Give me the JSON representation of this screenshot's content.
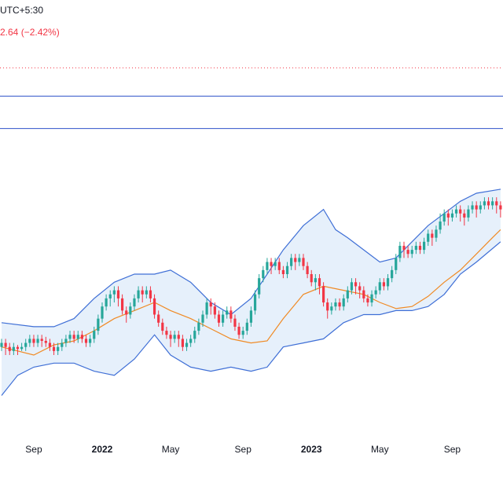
{
  "header": {
    "timezone_fragment": "UTC+5:30",
    "change_fragment": "2.64 (−2.42%)"
  },
  "colors": {
    "up": "#26a69a",
    "down": "#f23645",
    "band": "#3f6fd6",
    "band_fill": "#e6f0fb",
    "basis": "#f08a24",
    "hline": "#2f52c9",
    "dotted": "#f23645"
  },
  "chart_data": {
    "type": "candlestick",
    "x_ticks": [
      {
        "label": "Sep",
        "week": 8,
        "bold": false
      },
      {
        "label": "2022",
        "week": 25,
        "bold": true
      },
      {
        "label": "May",
        "week": 42,
        "bold": false
      },
      {
        "label": "Sep",
        "week": 60,
        "bold": false
      },
      {
        "label": "2023",
        "week": 77,
        "bold": true
      },
      {
        "label": "May",
        "week": 94,
        "bold": false
      },
      {
        "label": "Sep",
        "week": 112,
        "bold": false
      }
    ],
    "ylim": [
      0,
      100
    ],
    "horizontal_lines": [
      {
        "value": 91,
        "style": "dotted"
      },
      {
        "value": 84,
        "style": "solid"
      },
      {
        "value": 76,
        "style": "solid"
      }
    ],
    "bollinger": {
      "basis": [
        [
          0,
          22
        ],
        [
          8,
          20
        ],
        [
          13,
          22.5
        ],
        [
          18,
          23.5
        ],
        [
          23,
          26
        ],
        [
          28,
          29
        ],
        [
          33,
          31
        ],
        [
          38,
          33
        ],
        [
          42,
          31
        ],
        [
          47,
          29
        ],
        [
          52,
          26.5
        ],
        [
          57,
          24
        ],
        [
          62,
          23
        ],
        [
          66,
          23.5
        ],
        [
          70,
          29
        ],
        [
          75,
          35
        ],
        [
          80,
          37
        ],
        [
          85,
          36
        ],
        [
          90,
          35
        ],
        [
          94,
          33
        ],
        [
          98,
          31.5
        ],
        [
          102,
          32
        ],
        [
          106,
          34.5
        ],
        [
          110,
          38
        ],
        [
          114,
          41
        ],
        [
          118,
          45
        ],
        [
          122,
          49
        ],
        [
          124,
          51
        ]
      ],
      "upper": [
        [
          0,
          28
        ],
        [
          8,
          27
        ],
        [
          13,
          27
        ],
        [
          18,
          29
        ],
        [
          23,
          34
        ],
        [
          28,
          38
        ],
        [
          33,
          40
        ],
        [
          38,
          40
        ],
        [
          42,
          41
        ],
        [
          47,
          38
        ],
        [
          52,
          33
        ],
        [
          57,
          30
        ],
        [
          62,
          34
        ],
        [
          66,
          40
        ],
        [
          70,
          46
        ],
        [
          75,
          52
        ],
        [
          80,
          56
        ],
        [
          83,
          51
        ],
        [
          86,
          49
        ],
        [
          90,
          46
        ],
        [
          94,
          43
        ],
        [
          98,
          44
        ],
        [
          102,
          48
        ],
        [
          106,
          52
        ],
        [
          110,
          55
        ],
        [
          114,
          58
        ],
        [
          118,
          60
        ],
        [
          124,
          61
        ]
      ],
      "lower": [
        [
          0,
          10
        ],
        [
          4,
          15
        ],
        [
          8,
          17
        ],
        [
          13,
          18
        ],
        [
          18,
          18
        ],
        [
          23,
          16
        ],
        [
          28,
          15
        ],
        [
          33,
          19
        ],
        [
          38,
          25
        ],
        [
          42,
          20
        ],
        [
          47,
          17
        ],
        [
          52,
          16
        ],
        [
          57,
          17
        ],
        [
          62,
          16
        ],
        [
          66,
          17
        ],
        [
          70,
          22
        ],
        [
          75,
          23
        ],
        [
          80,
          24
        ],
        [
          85,
          28
        ],
        [
          90,
          30
        ],
        [
          94,
          30
        ],
        [
          98,
          31
        ],
        [
          102,
          31
        ],
        [
          106,
          32
        ],
        [
          110,
          35
        ],
        [
          114,
          40
        ],
        [
          118,
          43
        ],
        [
          124,
          48
        ]
      ]
    },
    "weekly_candles": [
      [
        22,
        23,
        24,
        21
      ],
      [
        23,
        22,
        24,
        20
      ],
      [
        22,
        21,
        23,
        20
      ],
      [
        21,
        22,
        23,
        20
      ],
      [
        22,
        21.5,
        22.5,
        20
      ],
      [
        21.5,
        22,
        23,
        21
      ],
      [
        22,
        23,
        24,
        21
      ],
      [
        23,
        24,
        25,
        22
      ],
      [
        24,
        23,
        25,
        22
      ],
      [
        23,
        24,
        25,
        22
      ],
      [
        24,
        23.5,
        25,
        22
      ],
      [
        23.5,
        23,
        24.5,
        22
      ],
      [
        23,
        22,
        24,
        21
      ],
      [
        22,
        21,
        23,
        20
      ],
      [
        21,
        22,
        23,
        20
      ],
      [
        22,
        23,
        24,
        21
      ],
      [
        23,
        24,
        25,
        22
      ],
      [
        24,
        25,
        26,
        23
      ],
      [
        25,
        24,
        26,
        23
      ],
      [
        24,
        25,
        26,
        23
      ],
      [
        25,
        24,
        26,
        23
      ],
      [
        24,
        23,
        25,
        22
      ],
      [
        23,
        24,
        25,
        22
      ],
      [
        24,
        26,
        27,
        23
      ],
      [
        26,
        29,
        30,
        25
      ],
      [
        29,
        32,
        33,
        28
      ],
      [
        32,
        34,
        35,
        31
      ],
      [
        34,
        35,
        36,
        32
      ],
      [
        35,
        36,
        37,
        33
      ],
      [
        36,
        34,
        37,
        32
      ],
      [
        34,
        31,
        35,
        30
      ],
      [
        31,
        30,
        32,
        28
      ],
      [
        30,
        32,
        33,
        29
      ],
      [
        32,
        34,
        35,
        31
      ],
      [
        34,
        36,
        37,
        33
      ],
      [
        36,
        35,
        37,
        33
      ],
      [
        35,
        36,
        37,
        34
      ],
      [
        36,
        34,
        37,
        33
      ],
      [
        34,
        30,
        35,
        29
      ],
      [
        30,
        28,
        31,
        27
      ],
      [
        28,
        26,
        29,
        25
      ],
      [
        26,
        25,
        27,
        24
      ],
      [
        25,
        24,
        26,
        22
      ],
      [
        24,
        25,
        26,
        23
      ],
      [
        25,
        24,
        26,
        22
      ],
      [
        24,
        22,
        25,
        21
      ],
      [
        22,
        23,
        24,
        21
      ],
      [
        23,
        24,
        25,
        22
      ],
      [
        24,
        26,
        27,
        23
      ],
      [
        26,
        28,
        29,
        25
      ],
      [
        28,
        30,
        31,
        27
      ],
      [
        30,
        33,
        34,
        29
      ],
      [
        33,
        32,
        34,
        30
      ],
      [
        32,
        30,
        33,
        29
      ],
      [
        30,
        28,
        31,
        27
      ],
      [
        28,
        30,
        31,
        27
      ],
      [
        30,
        31,
        32,
        29
      ],
      [
        31,
        29,
        32,
        28
      ],
      [
        29,
        27,
        30,
        26
      ],
      [
        27,
        25,
        28,
        24
      ],
      [
        25,
        26,
        27,
        24
      ],
      [
        26,
        28,
        29,
        25
      ],
      [
        28,
        31,
        32,
        27
      ],
      [
        31,
        35,
        36,
        30
      ],
      [
        35,
        39,
        40,
        34
      ],
      [
        39,
        41,
        42,
        38
      ],
      [
        41,
        43,
        44,
        40
      ],
      [
        43,
        42,
        44,
        40
      ],
      [
        42,
        43,
        44,
        41
      ],
      [
        43,
        41,
        44,
        40
      ],
      [
        41,
        40,
        42,
        39
      ],
      [
        40,
        42,
        43,
        39
      ],
      [
        42,
        44,
        45,
        41
      ],
      [
        44,
        43,
        45,
        41
      ],
      [
        43,
        44,
        45,
        42
      ],
      [
        44,
        42,
        45,
        41
      ],
      [
        42,
        40,
        43,
        39
      ],
      [
        40,
        38,
        41,
        37
      ],
      [
        38,
        39,
        40,
        36
      ],
      [
        39,
        37,
        40,
        35
      ],
      [
        37,
        33,
        38,
        32
      ],
      [
        33,
        31,
        34,
        29
      ],
      [
        31,
        32,
        33,
        30
      ],
      [
        32,
        33,
        34,
        31
      ],
      [
        33,
        32,
        34,
        31
      ],
      [
        32,
        34,
        35,
        31
      ],
      [
        34,
        36,
        37,
        33
      ],
      [
        36,
        38,
        39,
        35
      ],
      [
        38,
        37,
        39,
        35
      ],
      [
        37,
        36,
        38,
        34
      ],
      [
        36,
        34,
        37,
        33
      ],
      [
        34,
        33,
        35,
        32
      ],
      [
        33,
        35,
        36,
        32
      ],
      [
        35,
        36,
        37,
        34
      ],
      [
        36,
        38,
        39,
        35
      ],
      [
        38,
        37,
        39,
        36
      ],
      [
        37,
        39,
        40,
        36
      ],
      [
        39,
        41,
        42,
        38
      ],
      [
        41,
        44,
        45,
        40
      ],
      [
        44,
        47,
        48,
        43
      ],
      [
        47,
        46,
        48,
        44
      ],
      [
        46,
        45,
        47,
        44
      ],
      [
        45,
        46,
        47,
        44
      ],
      [
        46,
        47,
        48,
        45
      ],
      [
        47,
        46,
        48,
        45
      ],
      [
        46,
        48,
        49,
        45
      ],
      [
        48,
        50,
        51,
        47
      ],
      [
        50,
        49,
        51,
        47
      ],
      [
        49,
        51,
        52,
        48
      ],
      [
        51,
        53,
        55,
        50
      ],
      [
        53,
        55,
        56,
        52
      ],
      [
        55,
        54,
        56,
        52
      ],
      [
        54,
        55,
        56,
        53
      ],
      [
        55,
        56,
        57,
        54
      ],
      [
        56,
        55,
        57,
        53
      ],
      [
        55,
        54,
        56,
        52
      ],
      [
        54,
        56,
        57,
        53
      ],
      [
        56,
        57,
        58,
        55
      ],
      [
        57,
        56,
        58,
        54
      ],
      [
        56,
        57,
        58,
        55
      ],
      [
        57,
        58,
        59,
        56
      ],
      [
        58,
        57,
        59,
        56
      ],
      [
        57,
        58,
        59,
        56
      ],
      [
        58,
        57,
        59,
        55
      ],
      [
        57,
        56,
        58,
        54
      ]
    ]
  }
}
